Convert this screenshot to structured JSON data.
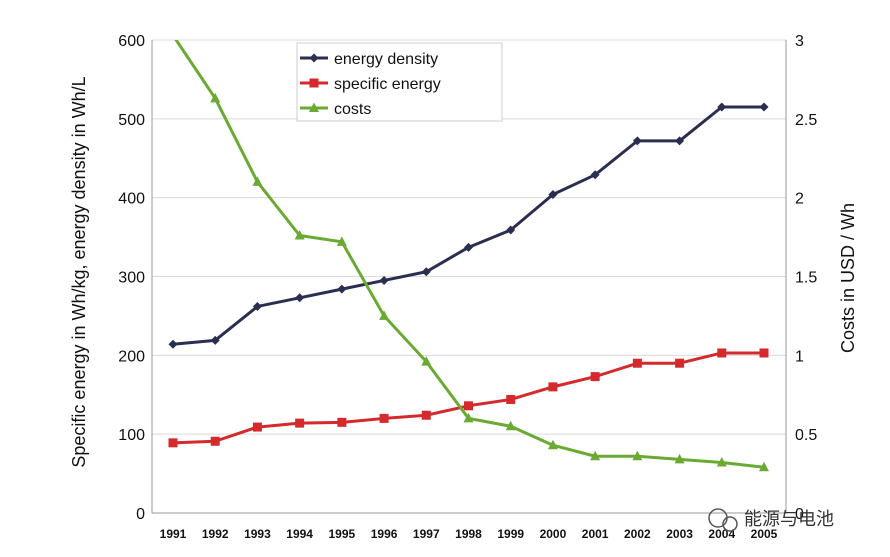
{
  "chart_data": {
    "type": "line",
    "categories": [
      "1991",
      "1992",
      "1993",
      "1994",
      "1995",
      "1996",
      "1997",
      "1998",
      "1999",
      "2000",
      "2001",
      "2002",
      "2003",
      "2004",
      "2005"
    ],
    "y_left_label": "Specific energy in Wh/kg, energy density in Wh/L",
    "y_right_label": "Costs in USD / Wh",
    "y_left_range": [
      0,
      600
    ],
    "y_left_ticks": [
      "0",
      "100",
      "200",
      "300",
      "400",
      "500",
      "600"
    ],
    "y_right_range": [
      0,
      3
    ],
    "y_right_ticks": [
      "0",
      "0.5",
      "1",
      "1.5",
      "2",
      "2.5",
      "3"
    ],
    "grid": true,
    "legend_position": "top-center",
    "series": [
      {
        "name": "energy density",
        "axis": "left",
        "color": "#2a2f52",
        "marker": "diamond",
        "values": [
          214,
          219,
          262,
          273,
          284,
          295,
          306,
          337,
          359,
          404,
          429,
          472,
          472,
          515,
          515
        ]
      },
      {
        "name": "specific energy",
        "axis": "left",
        "color": "#d42a2e",
        "marker": "square",
        "values": [
          89,
          91,
          109,
          114,
          115,
          120,
          124,
          136,
          144,
          160,
          173,
          190,
          190,
          203,
          203
        ]
      },
      {
        "name": "costs",
        "axis": "right",
        "color": "#6aaa32",
        "marker": "triangle",
        "values": [
          3.03,
          2.63,
          2.1,
          1.76,
          1.72,
          1.25,
          0.96,
          0.6,
          0.55,
          0.43,
          0.36,
          0.36,
          0.34,
          0.32,
          0.29
        ]
      }
    ]
  },
  "watermark": "能源与电池"
}
